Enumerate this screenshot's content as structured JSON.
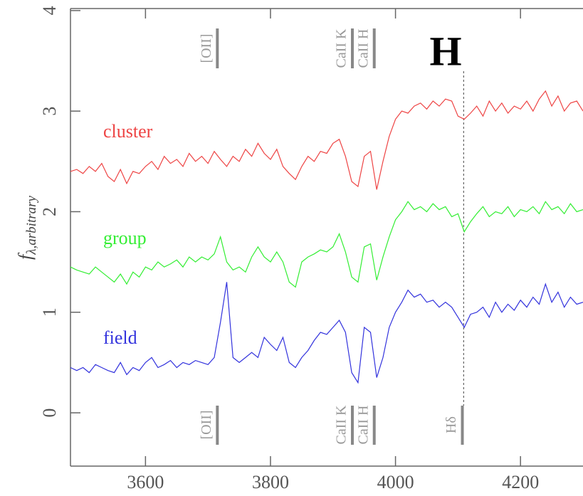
{
  "chart_data": {
    "type": "line",
    "ylabel": {
      "main": "f",
      "sub": "λ,arbitrary"
    },
    "headline": "H",
    "x": [
      3480,
      3490,
      3500,
      3510,
      3520,
      3530,
      3540,
      3550,
      3560,
      3570,
      3580,
      3590,
      3600,
      3610,
      3620,
      3630,
      3640,
      3650,
      3660,
      3670,
      3680,
      3690,
      3700,
      3710,
      3720,
      3730,
      3740,
      3750,
      3760,
      3770,
      3780,
      3790,
      3800,
      3810,
      3820,
      3830,
      3840,
      3850,
      3860,
      3870,
      3880,
      3890,
      3900,
      3910,
      3920,
      3930,
      3940,
      3950,
      3960,
      3970,
      3980,
      3990,
      4000,
      4010,
      4020,
      4030,
      4040,
      4050,
      4060,
      4070,
      4080,
      4090,
      4100,
      4110,
      4120,
      4130,
      4140,
      4150,
      4160,
      4170,
      4180,
      4190,
      4200,
      4210,
      4220,
      4230,
      4240,
      4250,
      4260,
      4270,
      4280,
      4290,
      4300
    ],
    "series": [
      {
        "name": "cluster",
        "color": "#ee4444",
        "values": [
          2.4,
          2.42,
          2.38,
          2.45,
          2.4,
          2.48,
          2.35,
          2.3,
          2.42,
          2.28,
          2.4,
          2.38,
          2.45,
          2.5,
          2.42,
          2.55,
          2.48,
          2.52,
          2.45,
          2.58,
          2.5,
          2.55,
          2.48,
          2.6,
          2.52,
          2.45,
          2.55,
          2.5,
          2.62,
          2.55,
          2.68,
          2.58,
          2.52,
          2.62,
          2.45,
          2.38,
          2.32,
          2.45,
          2.55,
          2.5,
          2.6,
          2.58,
          2.68,
          2.72,
          2.55,
          2.3,
          2.25,
          2.55,
          2.6,
          2.22,
          2.5,
          2.75,
          2.92,
          3.0,
          2.98,
          3.05,
          3.08,
          3.02,
          3.1,
          3.05,
          3.12,
          3.1,
          2.95,
          2.92,
          2.98,
          3.05,
          2.95,
          3.1,
          3.0,
          3.08,
          2.98,
          3.05,
          3.02,
          3.1,
          3.0,
          3.12,
          3.2,
          3.05,
          3.15,
          3.0,
          3.08,
          3.1,
          3.0
        ]
      },
      {
        "name": "group",
        "color": "#33ee33",
        "values": [
          1.45,
          1.42,
          1.4,
          1.38,
          1.45,
          1.4,
          1.35,
          1.3,
          1.38,
          1.28,
          1.4,
          1.35,
          1.45,
          1.42,
          1.5,
          1.45,
          1.48,
          1.52,
          1.45,
          1.55,
          1.5,
          1.55,
          1.52,
          1.58,
          1.75,
          1.5,
          1.42,
          1.45,
          1.4,
          1.55,
          1.65,
          1.55,
          1.5,
          1.6,
          1.5,
          1.3,
          1.25,
          1.5,
          1.55,
          1.58,
          1.62,
          1.6,
          1.65,
          1.78,
          1.6,
          1.35,
          1.3,
          1.65,
          1.68,
          1.32,
          1.55,
          1.75,
          1.92,
          2.0,
          2.1,
          2.02,
          2.05,
          2.0,
          2.08,
          2.02,
          2.05,
          1.95,
          1.98,
          1.8,
          1.9,
          1.98,
          2.05,
          1.95,
          2.0,
          1.98,
          2.05,
          1.95,
          2.02,
          2.0,
          2.05,
          1.98,
          2.1,
          2.02,
          2.05,
          1.98,
          2.08,
          2.0,
          2.02
        ]
      },
      {
        "name": "field",
        "color": "#3333dd",
        "values": [
          0.45,
          0.42,
          0.45,
          0.4,
          0.48,
          0.45,
          0.42,
          0.4,
          0.5,
          0.38,
          0.45,
          0.42,
          0.5,
          0.55,
          0.45,
          0.48,
          0.52,
          0.45,
          0.5,
          0.48,
          0.52,
          0.5,
          0.48,
          0.55,
          0.9,
          1.3,
          0.55,
          0.5,
          0.55,
          0.6,
          0.55,
          0.75,
          0.68,
          0.62,
          0.75,
          0.5,
          0.45,
          0.55,
          0.62,
          0.72,
          0.8,
          0.78,
          0.85,
          0.92,
          0.8,
          0.4,
          0.3,
          0.85,
          0.8,
          0.35,
          0.55,
          0.85,
          1.0,
          1.1,
          1.22,
          1.15,
          1.18,
          1.1,
          1.12,
          1.05,
          1.1,
          1.05,
          0.95,
          0.85,
          0.98,
          1.0,
          1.05,
          0.95,
          1.1,
          1.0,
          1.08,
          1.02,
          1.12,
          1.05,
          1.15,
          1.08,
          1.28,
          1.1,
          1.2,
          1.05,
          1.15,
          1.08,
          1.1
        ]
      }
    ],
    "xlim": [
      3480,
      4300
    ],
    "ylim": [
      -0.53,
      4.02
    ],
    "xticks": [
      3600,
      3800,
      4000,
      4200
    ],
    "yticks": [
      0,
      1,
      2,
      3,
      4
    ],
    "annotations": [
      {
        "text": "[OII]",
        "x": 3715,
        "position": "top"
      },
      {
        "text": "CaII K",
        "x": 3931,
        "position": "top"
      },
      {
        "text": "CaII H",
        "x": 3966,
        "position": "top"
      },
      {
        "text": "[OII]",
        "x": 3715,
        "position": "bottom"
      },
      {
        "text": "CaII K",
        "x": 3931,
        "position": "bottom"
      },
      {
        "text": "CaII H",
        "x": 3966,
        "position": "bottom"
      },
      {
        "text": "Hδ",
        "x": 4107,
        "position": "bottom"
      }
    ],
    "vline": {
      "x": 4109
    }
  }
}
